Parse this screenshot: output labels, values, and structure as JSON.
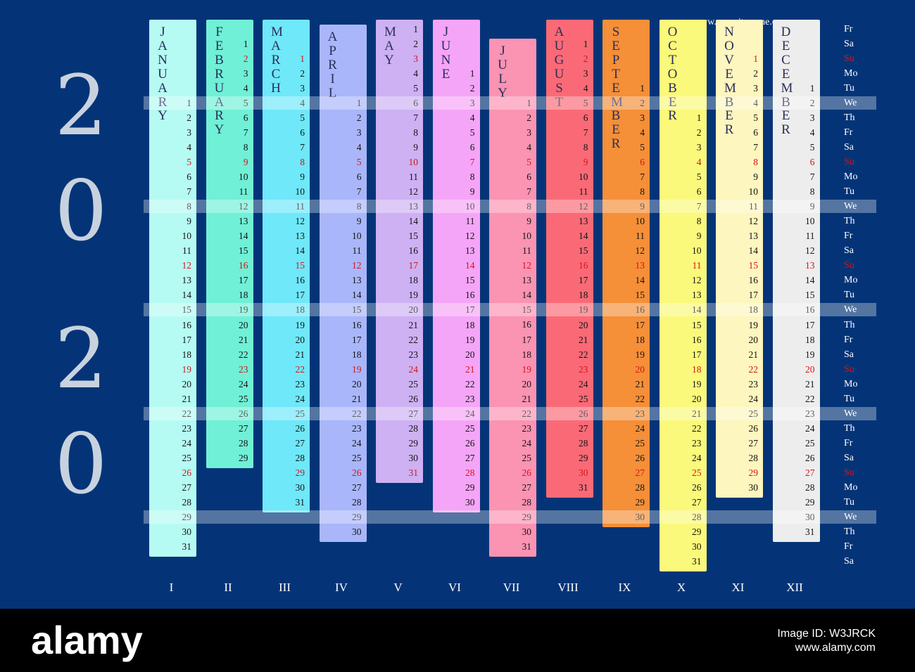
{
  "year_digits": [
    "2",
    "0",
    "2",
    "0"
  ],
  "site": "www.yoursitename.com",
  "months": [
    {
      "name": "JANUARY",
      "roman": "I",
      "color": "#b6fbf3",
      "days": 31,
      "first_weekday": 3
    },
    {
      "name": "FEBRUARY",
      "roman": "II",
      "color": "#70f0d6",
      "days": 29,
      "first_weekday": 6
    },
    {
      "name": "MARCH",
      "roman": "III",
      "color": "#6fe8f9",
      "days": 31,
      "first_weekday": 0
    },
    {
      "name": "APRIL",
      "roman": "IV",
      "color": "#a9b6fa",
      "days": 30,
      "first_weekday": 3
    },
    {
      "name": "MAY",
      "roman": "V",
      "color": "#cdb1f3",
      "days": 31,
      "first_weekday": 5
    },
    {
      "name": "JUNE",
      "roman": "VI",
      "color": "#f5a5f7",
      "days": 30,
      "first_weekday": 1
    },
    {
      "name": "JULY",
      "roman": "VII",
      "color": "#fb93b3",
      "days": 31,
      "first_weekday": 3
    },
    {
      "name": "AUGUST",
      "roman": "VIII",
      "color": "#fa6a76",
      "days": 31,
      "first_weekday": 6
    },
    {
      "name": "SEPTEMBER",
      "roman": "IX",
      "color": "#f58f38",
      "days": 30,
      "first_weekday": 2
    },
    {
      "name": "OCTOBER",
      "roman": "X",
      "color": "#fbf97b",
      "days": 31,
      "first_weekday": 4
    },
    {
      "name": "NOVEMBER",
      "roman": "XI",
      "color": "#fdf6be",
      "days": 30,
      "first_weekday": 0
    },
    {
      "name": "DECEMBER",
      "roman": "XII",
      "color": "#ededed",
      "days": 31,
      "first_weekday": 2
    }
  ],
  "weekdays": [
    "Fr",
    "Sa",
    "Su",
    "Mo",
    "Tu",
    "We",
    "Th",
    "Fr",
    "Sa",
    "Su",
    "Mo",
    "Tu",
    "We",
    "Th",
    "Fr",
    "Sa",
    "Su",
    "Mo",
    "Tu",
    "We",
    "Th",
    "Fr",
    "Sa",
    "Su",
    "Mo",
    "Tu",
    "We",
    "Th",
    "Fr",
    "Sa",
    "Su",
    "Mo",
    "Tu",
    "We",
    "Th",
    "Fr",
    "Sa"
  ],
  "colors": {
    "background": "#043477",
    "sunday": "#d4141c",
    "text": "#141414"
  },
  "watermark": {
    "brand": "alamy",
    "image_id": "Image ID: W3JRCK",
    "site": "www.alamy.com"
  }
}
